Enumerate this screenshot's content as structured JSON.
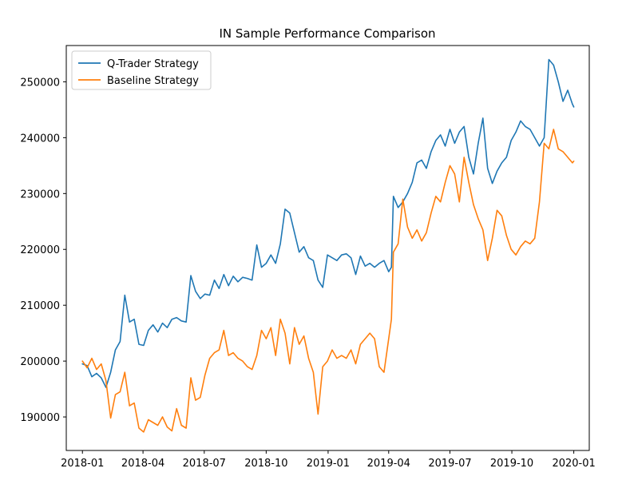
{
  "chart_data": {
    "type": "line",
    "title": "IN Sample Performance Comparison",
    "xlabel": "",
    "ylabel": "",
    "xlim": [
      "2017-12-08",
      "2020-01-24"
    ],
    "ylim": [
      184000,
      256500
    ],
    "x_ticks": [
      "2018-01",
      "2018-04",
      "2018-07",
      "2018-10",
      "2019-01",
      "2019-04",
      "2019-07",
      "2019-10",
      "2020-01"
    ],
    "y_ticks": [
      190000,
      200000,
      210000,
      220000,
      230000,
      240000,
      250000
    ],
    "y_tick_labels": [
      "190000",
      "200000",
      "210000",
      "220000",
      "230000",
      "240000",
      "250000"
    ],
    "legend_position": "top-left",
    "grid": false,
    "series": [
      {
        "name": "Q-Trader Strategy",
        "color": "#1f77b4",
        "points": [
          [
            "2018-01-01",
            199500
          ],
          [
            "2018-01-08",
            199200
          ],
          [
            "2018-01-15",
            197200
          ],
          [
            "2018-01-22",
            197800
          ],
          [
            "2018-01-29",
            197000
          ],
          [
            "2018-02-05",
            195300
          ],
          [
            "2018-02-12",
            198000
          ],
          [
            "2018-02-19",
            202000
          ],
          [
            "2018-02-26",
            203500
          ],
          [
            "2018-03-05",
            211800
          ],
          [
            "2018-03-12",
            207000
          ],
          [
            "2018-03-19",
            207500
          ],
          [
            "2018-03-26",
            203000
          ],
          [
            "2018-04-02",
            202800
          ],
          [
            "2018-04-09",
            205500
          ],
          [
            "2018-04-16",
            206500
          ],
          [
            "2018-04-23",
            205200
          ],
          [
            "2018-04-30",
            206800
          ],
          [
            "2018-05-07",
            206000
          ],
          [
            "2018-05-14",
            207500
          ],
          [
            "2018-05-21",
            207800
          ],
          [
            "2018-05-28",
            207200
          ],
          [
            "2018-06-04",
            207000
          ],
          [
            "2018-06-11",
            215300
          ],
          [
            "2018-06-18",
            212500
          ],
          [
            "2018-06-25",
            211200
          ],
          [
            "2018-07-02",
            212000
          ],
          [
            "2018-07-09",
            211800
          ],
          [
            "2018-07-16",
            214500
          ],
          [
            "2018-07-23",
            213000
          ],
          [
            "2018-07-30",
            215500
          ],
          [
            "2018-08-06",
            213500
          ],
          [
            "2018-08-13",
            215200
          ],
          [
            "2018-08-20",
            214200
          ],
          [
            "2018-08-27",
            215000
          ],
          [
            "2018-09-03",
            214800
          ],
          [
            "2018-09-10",
            214500
          ],
          [
            "2018-09-17",
            220800
          ],
          [
            "2018-09-24",
            216800
          ],
          [
            "2018-10-01",
            217500
          ],
          [
            "2018-10-08",
            219000
          ],
          [
            "2018-10-15",
            217500
          ],
          [
            "2018-10-22",
            221000
          ],
          [
            "2018-10-29",
            227200
          ],
          [
            "2018-11-05",
            226500
          ],
          [
            "2018-11-12",
            223000
          ],
          [
            "2018-11-19",
            219500
          ],
          [
            "2018-11-26",
            220500
          ],
          [
            "2018-12-03",
            218500
          ],
          [
            "2018-12-10",
            218000
          ],
          [
            "2018-12-17",
            214500
          ],
          [
            "2018-12-24",
            213200
          ],
          [
            "2018-12-31",
            219000
          ],
          [
            "2019-01-07",
            218500
          ],
          [
            "2019-01-14",
            218000
          ],
          [
            "2019-01-21",
            219000
          ],
          [
            "2019-01-28",
            219200
          ],
          [
            "2019-02-04",
            218500
          ],
          [
            "2019-02-11",
            215500
          ],
          [
            "2019-02-18",
            218800
          ],
          [
            "2019-02-25",
            217000
          ],
          [
            "2019-03-04",
            217500
          ],
          [
            "2019-03-11",
            216800
          ],
          [
            "2019-03-18",
            217500
          ],
          [
            "2019-03-25",
            218000
          ],
          [
            "2019-04-01",
            216000
          ],
          [
            "2019-04-05",
            216800
          ],
          [
            "2019-04-08",
            229500
          ],
          [
            "2019-04-15",
            227500
          ],
          [
            "2019-04-22",
            228500
          ],
          [
            "2019-04-29",
            230000
          ],
          [
            "2019-05-06",
            232000
          ],
          [
            "2019-05-13",
            235500
          ],
          [
            "2019-05-20",
            236000
          ],
          [
            "2019-05-27",
            234500
          ],
          [
            "2019-06-03",
            237500
          ],
          [
            "2019-06-10",
            239500
          ],
          [
            "2019-06-17",
            240500
          ],
          [
            "2019-06-24",
            238500
          ],
          [
            "2019-07-01",
            241500
          ],
          [
            "2019-07-08",
            239000
          ],
          [
            "2019-07-15",
            241000
          ],
          [
            "2019-07-22",
            242000
          ],
          [
            "2019-07-29",
            236500
          ],
          [
            "2019-08-05",
            233500
          ],
          [
            "2019-08-12",
            239000
          ],
          [
            "2019-08-19",
            243500
          ],
          [
            "2019-08-26",
            234500
          ],
          [
            "2019-09-02",
            231800
          ],
          [
            "2019-09-09",
            234000
          ],
          [
            "2019-09-16",
            235500
          ],
          [
            "2019-09-23",
            236500
          ],
          [
            "2019-09-30",
            239500
          ],
          [
            "2019-10-07",
            241000
          ],
          [
            "2019-10-14",
            243000
          ],
          [
            "2019-10-21",
            242000
          ],
          [
            "2019-10-28",
            241500
          ],
          [
            "2019-11-04",
            240000
          ],
          [
            "2019-11-11",
            238500
          ],
          [
            "2019-11-18",
            240000
          ],
          [
            "2019-11-25",
            254000
          ],
          [
            "2019-12-02",
            253000
          ],
          [
            "2019-12-09",
            250000
          ],
          [
            "2019-12-16",
            246500
          ],
          [
            "2019-12-23",
            248500
          ],
          [
            "2019-12-30",
            246000
          ],
          [
            "2020-01-01",
            245500
          ]
        ]
      },
      {
        "name": "Baseline Strategy",
        "color": "#ff7f0e",
        "points": [
          [
            "2018-01-01",
            200000
          ],
          [
            "2018-01-08",
            198800
          ],
          [
            "2018-01-15",
            200500
          ],
          [
            "2018-01-22",
            198500
          ],
          [
            "2018-01-29",
            199500
          ],
          [
            "2018-02-05",
            196500
          ],
          [
            "2018-02-12",
            189800
          ],
          [
            "2018-02-19",
            194000
          ],
          [
            "2018-02-26",
            194500
          ],
          [
            "2018-03-05",
            198000
          ],
          [
            "2018-03-12",
            192000
          ],
          [
            "2018-03-19",
            192500
          ],
          [
            "2018-03-26",
            188000
          ],
          [
            "2018-04-02",
            187300
          ],
          [
            "2018-04-09",
            189500
          ],
          [
            "2018-04-16",
            189000
          ],
          [
            "2018-04-23",
            188500
          ],
          [
            "2018-04-30",
            190000
          ],
          [
            "2018-05-07",
            188200
          ],
          [
            "2018-05-14",
            187500
          ],
          [
            "2018-05-21",
            191500
          ],
          [
            "2018-05-28",
            188500
          ],
          [
            "2018-06-04",
            188000
          ],
          [
            "2018-06-11",
            197000
          ],
          [
            "2018-06-18",
            193000
          ],
          [
            "2018-06-25",
            193500
          ],
          [
            "2018-07-02",
            197500
          ],
          [
            "2018-07-09",
            200500
          ],
          [
            "2018-07-16",
            201500
          ],
          [
            "2018-07-23",
            202000
          ],
          [
            "2018-07-30",
            205500
          ],
          [
            "2018-08-06",
            201000
          ],
          [
            "2018-08-13",
            201500
          ],
          [
            "2018-08-20",
            200500
          ],
          [
            "2018-08-27",
            200000
          ],
          [
            "2018-09-03",
            199000
          ],
          [
            "2018-09-10",
            198500
          ],
          [
            "2018-09-17",
            201000
          ],
          [
            "2018-09-24",
            205500
          ],
          [
            "2018-10-01",
            204000
          ],
          [
            "2018-10-08",
            206000
          ],
          [
            "2018-10-15",
            201000
          ],
          [
            "2018-10-22",
            207500
          ],
          [
            "2018-10-29",
            205000
          ],
          [
            "2018-11-05",
            199500
          ],
          [
            "2018-11-12",
            206000
          ],
          [
            "2018-11-19",
            203000
          ],
          [
            "2018-11-26",
            204500
          ],
          [
            "2018-12-03",
            200500
          ],
          [
            "2018-12-10",
            198000
          ],
          [
            "2018-12-17",
            190500
          ],
          [
            "2018-12-24",
            199000
          ],
          [
            "2018-12-31",
            200000
          ],
          [
            "2019-01-07",
            202000
          ],
          [
            "2019-01-14",
            200500
          ],
          [
            "2019-01-21",
            201000
          ],
          [
            "2019-01-28",
            200500
          ],
          [
            "2019-02-04",
            202000
          ],
          [
            "2019-02-11",
            199500
          ],
          [
            "2019-02-18",
            203000
          ],
          [
            "2019-02-25",
            204000
          ],
          [
            "2019-03-04",
            205000
          ],
          [
            "2019-03-11",
            204000
          ],
          [
            "2019-03-18",
            199000
          ],
          [
            "2019-03-25",
            198000
          ],
          [
            "2019-04-01",
            204000
          ],
          [
            "2019-04-05",
            207500
          ],
          [
            "2019-04-08",
            219500
          ],
          [
            "2019-04-15",
            221000
          ],
          [
            "2019-04-22",
            229000
          ],
          [
            "2019-04-29",
            224000
          ],
          [
            "2019-05-06",
            222000
          ],
          [
            "2019-05-13",
            223500
          ],
          [
            "2019-05-20",
            221500
          ],
          [
            "2019-05-27",
            223000
          ],
          [
            "2019-06-03",
            226500
          ],
          [
            "2019-06-10",
            229500
          ],
          [
            "2019-06-17",
            228500
          ],
          [
            "2019-06-24",
            232000
          ],
          [
            "2019-07-01",
            235000
          ],
          [
            "2019-07-08",
            233500
          ],
          [
            "2019-07-15",
            228500
          ],
          [
            "2019-07-22",
            236500
          ],
          [
            "2019-07-29",
            232000
          ],
          [
            "2019-08-05",
            228000
          ],
          [
            "2019-08-12",
            225500
          ],
          [
            "2019-08-19",
            223500
          ],
          [
            "2019-08-26",
            218000
          ],
          [
            "2019-09-02",
            222000
          ],
          [
            "2019-09-09",
            227000
          ],
          [
            "2019-09-16",
            226000
          ],
          [
            "2019-09-23",
            222500
          ],
          [
            "2019-09-30",
            220000
          ],
          [
            "2019-10-07",
            219000
          ],
          [
            "2019-10-14",
            220500
          ],
          [
            "2019-10-21",
            221500
          ],
          [
            "2019-10-28",
            221000
          ],
          [
            "2019-11-04",
            222000
          ],
          [
            "2019-11-11",
            228500
          ],
          [
            "2019-11-18",
            239000
          ],
          [
            "2019-11-25",
            238000
          ],
          [
            "2019-12-02",
            241500
          ],
          [
            "2019-12-09",
            238000
          ],
          [
            "2019-12-16",
            237500
          ],
          [
            "2019-12-23",
            236500
          ],
          [
            "2019-12-30",
            235500
          ],
          [
            "2020-01-01",
            235800
          ]
        ]
      }
    ]
  }
}
